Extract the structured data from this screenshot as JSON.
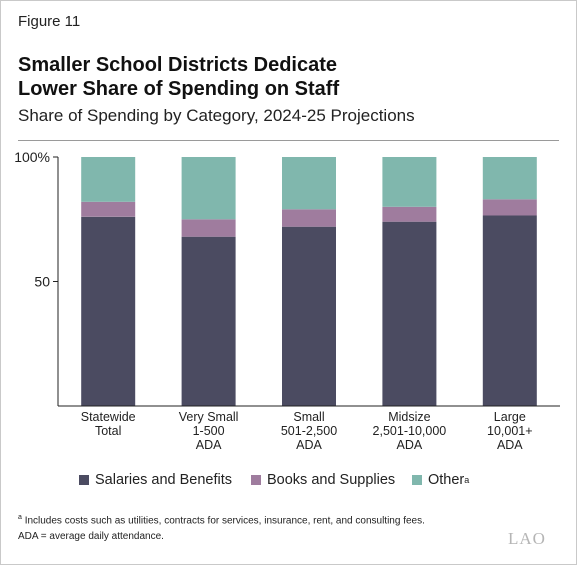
{
  "figure_label": "Figure 11",
  "title_line1": "Smaller School Districts Dedicate",
  "title_line2": "Lower Share of Spending on Staff",
  "subtitle": "Share of Spending by Category, 2024-25 Projections",
  "colors": {
    "salaries": "#4b4b61",
    "books": "#9f7c9e",
    "other": "#80b7ad",
    "axis": "#222222"
  },
  "legend": {
    "salaries": "Salaries and Benefits",
    "books": "Books and Supplies",
    "other": "Other",
    "other_mark": "a"
  },
  "footnote_mark": "a",
  "footnote": "Includes costs such as utilities, contracts for services, insurance, rent, and consulting fees.",
  "footnote2": "ADA = average daily attendance.",
  "logo": "LAO",
  "chart_data": {
    "type": "bar",
    "stacked": true,
    "categories": [
      [
        "Statewide",
        "Total"
      ],
      [
        "Very Small",
        "1-500",
        "ADA"
      ],
      [
        "Small",
        "501-2,500",
        "ADA"
      ],
      [
        "Midsize",
        "2,501-10,000",
        "ADA"
      ],
      [
        "Large",
        "10,001+",
        "ADA"
      ]
    ],
    "series": [
      {
        "name": "Salaries and Benefits",
        "values": [
          76,
          68,
          72,
          74,
          76.5
        ]
      },
      {
        "name": "Books and Supplies",
        "values": [
          6,
          7,
          7,
          6,
          6.5
        ]
      },
      {
        "name": "Other",
        "values": [
          18,
          25,
          21,
          20,
          17
        ]
      }
    ],
    "ylim": [
      0,
      100
    ],
    "yticks": [
      {
        "value": 100,
        "label": "100%"
      },
      {
        "value": 50,
        "label": "50"
      }
    ],
    "xlabel": "",
    "ylabel": "",
    "grid": false,
    "legend_position": "bottom"
  }
}
